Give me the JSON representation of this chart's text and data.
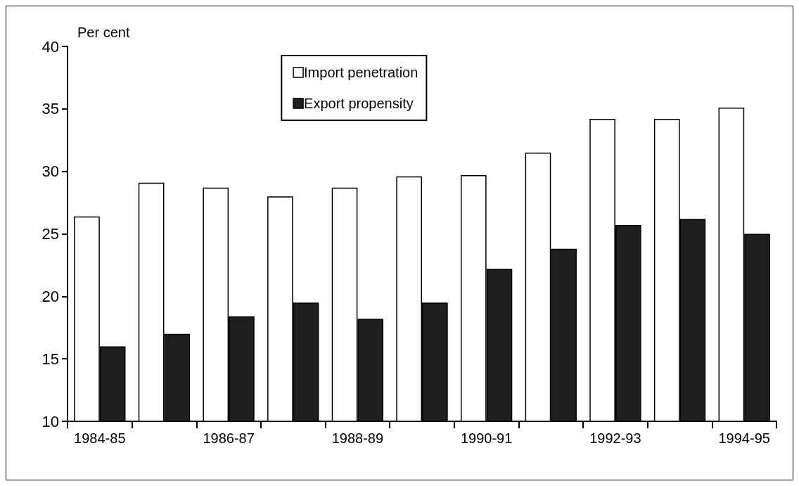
{
  "chart_data": {
    "type": "bar",
    "ylabel": "Per cent",
    "categories": [
      "1984-85",
      null,
      "1986-87",
      null,
      "1988-89",
      null,
      "1990-91",
      null,
      "1992-93",
      null,
      "1994-95"
    ],
    "series": [
      {
        "name": "Import penetration",
        "color": "#ffffff",
        "values": [
          26.4,
          29.1,
          28.7,
          28.0,
          28.7,
          29.6,
          29.7,
          31.5,
          34.2,
          34.2,
          35.1
        ]
      },
      {
        "name": "Export propensity",
        "color": "#1f1f1f",
        "values": [
          16.0,
          17.0,
          18.4,
          19.5,
          18.2,
          19.5,
          22.2,
          23.8,
          25.7,
          26.2,
          25.0
        ]
      }
    ],
    "ylim": [
      10,
      40
    ],
    "yticks": [
      10,
      15,
      20,
      25,
      30,
      35,
      40
    ],
    "grid": false,
    "legend": "top"
  }
}
